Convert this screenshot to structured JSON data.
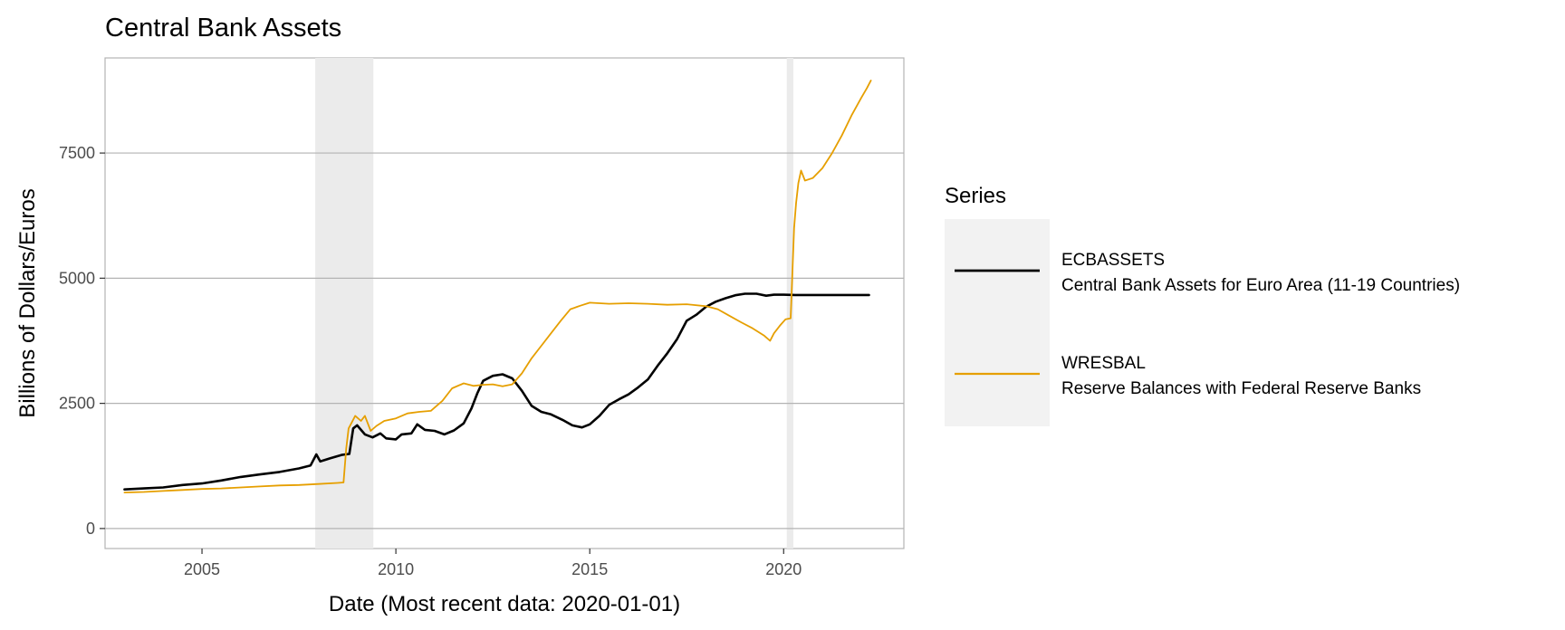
{
  "chart_data": {
    "type": "line",
    "title": "Central Bank Assets",
    "xlabel": "Date (Most recent data: 2020-01-01)",
    "ylabel": "Billions of Dollars/Euros",
    "xlim": [
      2002.5,
      2023.1
    ],
    "ylim": [
      -400,
      9400
    ],
    "x_ticks": [
      2005,
      2010,
      2015,
      2020
    ],
    "y_ticks": [
      0,
      2500,
      5000,
      7500
    ],
    "grid": "horizontal major gridlines",
    "legend_position": "right",
    "legend_title": "Series",
    "recession_shading": [
      {
        "start": 2007.92,
        "end": 2009.42
      },
      {
        "start": 2020.08,
        "end": 2020.25
      }
    ],
    "series": [
      {
        "name": "ECBASSETS",
        "description": "Central Bank Assets for Euro Area (11-19 Countries)",
        "color": "#000000",
        "points": [
          [
            2003.0,
            780
          ],
          [
            2003.5,
            800
          ],
          [
            2004.0,
            820
          ],
          [
            2004.5,
            870
          ],
          [
            2005.0,
            900
          ],
          [
            2005.5,
            960
          ],
          [
            2006.0,
            1030
          ],
          [
            2006.5,
            1080
          ],
          [
            2007.0,
            1130
          ],
          [
            2007.5,
            1200
          ],
          [
            2007.8,
            1260
          ],
          [
            2007.95,
            1480
          ],
          [
            2008.05,
            1340
          ],
          [
            2008.3,
            1400
          ],
          [
            2008.6,
            1470
          ],
          [
            2008.8,
            1490
          ],
          [
            2008.9,
            2000
          ],
          [
            2009.0,
            2060
          ],
          [
            2009.2,
            1880
          ],
          [
            2009.4,
            1820
          ],
          [
            2009.6,
            1900
          ],
          [
            2009.75,
            1800
          ],
          [
            2010.0,
            1780
          ],
          [
            2010.15,
            1880
          ],
          [
            2010.4,
            1900
          ],
          [
            2010.55,
            2080
          ],
          [
            2010.75,
            1970
          ],
          [
            2011.0,
            1950
          ],
          [
            2011.25,
            1880
          ],
          [
            2011.5,
            1960
          ],
          [
            2011.75,
            2100
          ],
          [
            2011.95,
            2400
          ],
          [
            2012.1,
            2700
          ],
          [
            2012.25,
            2950
          ],
          [
            2012.5,
            3050
          ],
          [
            2012.75,
            3080
          ],
          [
            2013.0,
            3000
          ],
          [
            2013.25,
            2750
          ],
          [
            2013.5,
            2450
          ],
          [
            2013.75,
            2330
          ],
          [
            2014.0,
            2280
          ],
          [
            2014.3,
            2170
          ],
          [
            2014.55,
            2060
          ],
          [
            2014.8,
            2020
          ],
          [
            2015.0,
            2080
          ],
          [
            2015.25,
            2250
          ],
          [
            2015.5,
            2470
          ],
          [
            2015.75,
            2580
          ],
          [
            2016.0,
            2680
          ],
          [
            2016.25,
            2820
          ],
          [
            2016.5,
            2980
          ],
          [
            2016.75,
            3250
          ],
          [
            2017.0,
            3500
          ],
          [
            2017.25,
            3780
          ],
          [
            2017.5,
            4150
          ],
          [
            2017.75,
            4270
          ],
          [
            2018.0,
            4430
          ],
          [
            2018.25,
            4530
          ],
          [
            2018.5,
            4600
          ],
          [
            2018.75,
            4660
          ],
          [
            2019.0,
            4690
          ],
          [
            2019.3,
            4690
          ],
          [
            2019.55,
            4650
          ],
          [
            2019.75,
            4670
          ],
          [
            2020.0,
            4670
          ],
          [
            2020.3,
            4665
          ],
          [
            2020.8,
            4665
          ],
          [
            2021.5,
            4665
          ],
          [
            2022.2,
            4665
          ]
        ]
      },
      {
        "name": "WRESBAL",
        "description": "Reserve Balances with Federal Reserve Banks",
        "color": "#E69F00",
        "points": [
          [
            2003.0,
            720
          ],
          [
            2003.5,
            730
          ],
          [
            2004.0,
            750
          ],
          [
            2004.5,
            770
          ],
          [
            2005.0,
            790
          ],
          [
            2005.5,
            800
          ],
          [
            2006.0,
            820
          ],
          [
            2006.5,
            840
          ],
          [
            2007.0,
            860
          ],
          [
            2007.5,
            870
          ],
          [
            2008.0,
            890
          ],
          [
            2008.5,
            910
          ],
          [
            2008.65,
            920
          ],
          [
            2008.72,
            1600
          ],
          [
            2008.78,
            2000
          ],
          [
            2008.85,
            2100
          ],
          [
            2008.95,
            2250
          ],
          [
            2009.1,
            2150
          ],
          [
            2009.2,
            2250
          ],
          [
            2009.35,
            1950
          ],
          [
            2009.5,
            2050
          ],
          [
            2009.7,
            2150
          ],
          [
            2010.0,
            2200
          ],
          [
            2010.3,
            2300
          ],
          [
            2010.6,
            2330
          ],
          [
            2010.9,
            2350
          ],
          [
            2011.2,
            2550
          ],
          [
            2011.45,
            2800
          ],
          [
            2011.75,
            2900
          ],
          [
            2012.0,
            2850
          ],
          [
            2012.25,
            2870
          ],
          [
            2012.5,
            2880
          ],
          [
            2012.75,
            2840
          ],
          [
            2013.0,
            2880
          ],
          [
            2013.25,
            3100
          ],
          [
            2013.5,
            3400
          ],
          [
            2013.75,
            3650
          ],
          [
            2014.0,
            3900
          ],
          [
            2014.25,
            4150
          ],
          [
            2014.5,
            4380
          ],
          [
            2014.75,
            4450
          ],
          [
            2015.0,
            4510
          ],
          [
            2015.5,
            4490
          ],
          [
            2016.0,
            4500
          ],
          [
            2016.5,
            4490
          ],
          [
            2017.0,
            4470
          ],
          [
            2017.5,
            4480
          ],
          [
            2018.0,
            4440
          ],
          [
            2018.3,
            4380
          ],
          [
            2018.6,
            4250
          ],
          [
            2018.9,
            4120
          ],
          [
            2019.2,
            4000
          ],
          [
            2019.5,
            3850
          ],
          [
            2019.65,
            3750
          ],
          [
            2019.75,
            3900
          ],
          [
            2019.9,
            4050
          ],
          [
            2020.05,
            4180
          ],
          [
            2020.18,
            4200
          ],
          [
            2020.22,
            5000
          ],
          [
            2020.27,
            6000
          ],
          [
            2020.32,
            6500
          ],
          [
            2020.38,
            6900
          ],
          [
            2020.45,
            7150
          ],
          [
            2020.55,
            6950
          ],
          [
            2020.75,
            7000
          ],
          [
            2021.0,
            7200
          ],
          [
            2021.25,
            7500
          ],
          [
            2021.5,
            7850
          ],
          [
            2021.75,
            8250
          ],
          [
            2022.0,
            8600
          ],
          [
            2022.15,
            8800
          ],
          [
            2022.25,
            8950
          ]
        ]
      }
    ]
  }
}
